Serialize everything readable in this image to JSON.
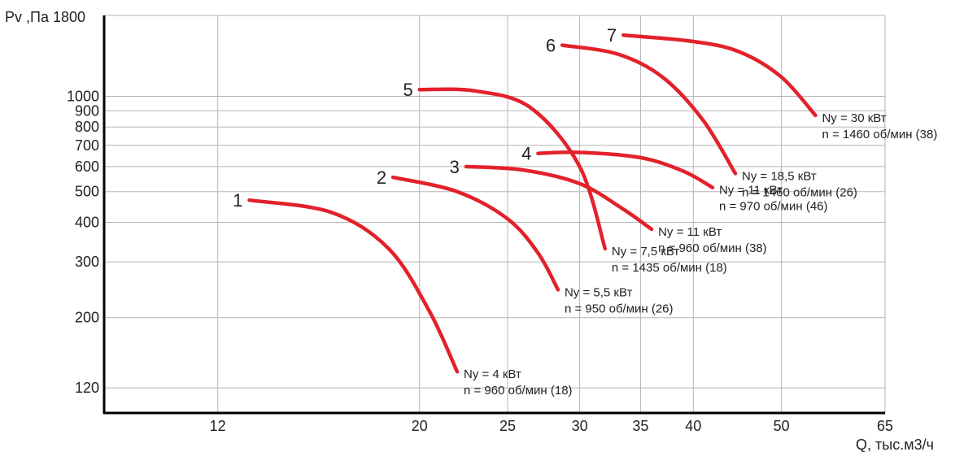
{
  "chart_data": {
    "type": "line",
    "ylabel": "Pv ,Па 1800",
    "xlabel": "Q, тыс.м3/ч",
    "x_scale": "log",
    "y_scale": "log",
    "xlim": [
      9,
      65
    ],
    "ylim": [
      100,
      1800
    ],
    "grid": true,
    "x_ticks": [
      12,
      20,
      25,
      30,
      35,
      40,
      50,
      65
    ],
    "x_tick_labels": [
      "12",
      "20",
      "25",
      "30",
      "35",
      "40",
      "50",
      "65"
    ],
    "y_ticks": [
      120,
      200,
      300,
      400,
      500,
      600,
      700,
      800,
      900,
      1000
    ],
    "y_tick_labels": [
      "120",
      "200",
      "300",
      "400",
      "500",
      "600",
      "700",
      "800",
      "900",
      "1000"
    ],
    "series": [
      {
        "name": "1",
        "line1": "Ny = 4 кВт",
        "line2": "n = 960 об/мин (18)",
        "x": [
          13.0,
          16.0,
          18.5,
          20.5,
          22.0
        ],
        "y": [
          470,
          430,
          330,
          210,
          135
        ]
      },
      {
        "name": "2",
        "line1": "Ny = 5,5 кВт",
        "line2": "n = 950 об/мин (26)",
        "x": [
          18.7,
          22.0,
          25.0,
          27.0,
          28.4
        ],
        "y": [
          555,
          500,
          410,
          320,
          245
        ]
      },
      {
        "name": "3",
        "line1": "Ny = 11 кВт",
        "line2": "n = 960 об/мин (38)",
        "x": [
          22.5,
          26.0,
          30.0,
          33.5,
          36.0
        ],
        "y": [
          600,
          585,
          530,
          440,
          380
        ]
      },
      {
        "name": "4",
        "line1": "Ny = 11 кВт",
        "line2": "n = 970 об/мин (46)",
        "x": [
          27.0,
          30.0,
          35.0,
          39.0,
          42.0
        ],
        "y": [
          660,
          665,
          640,
          580,
          515
        ]
      },
      {
        "name": "5",
        "line1": "Ny = 7,5 кВт",
        "line2": "n = 1435 об/мин (18)",
        "x": [
          20.0,
          23.0,
          26.5,
          30.0,
          32.0
        ],
        "y": [
          1050,
          1040,
          920,
          600,
          330
        ]
      },
      {
        "name": "6",
        "line1": "Ny = 18,5 кВт",
        "line2": "n = 1460 об/мин (26)",
        "x": [
          28.7,
          33.0,
          37.0,
          41.0,
          44.5
        ],
        "y": [
          1450,
          1360,
          1150,
          840,
          570
        ]
      },
      {
        "name": "7",
        "line1": "Ny = 30 кВт",
        "line2": "n = 1460 об/мин (38)",
        "x": [
          33.5,
          40.0,
          45.0,
          50.0,
          54.5
        ],
        "y": [
          1560,
          1490,
          1380,
          1150,
          870
        ]
      }
    ]
  }
}
